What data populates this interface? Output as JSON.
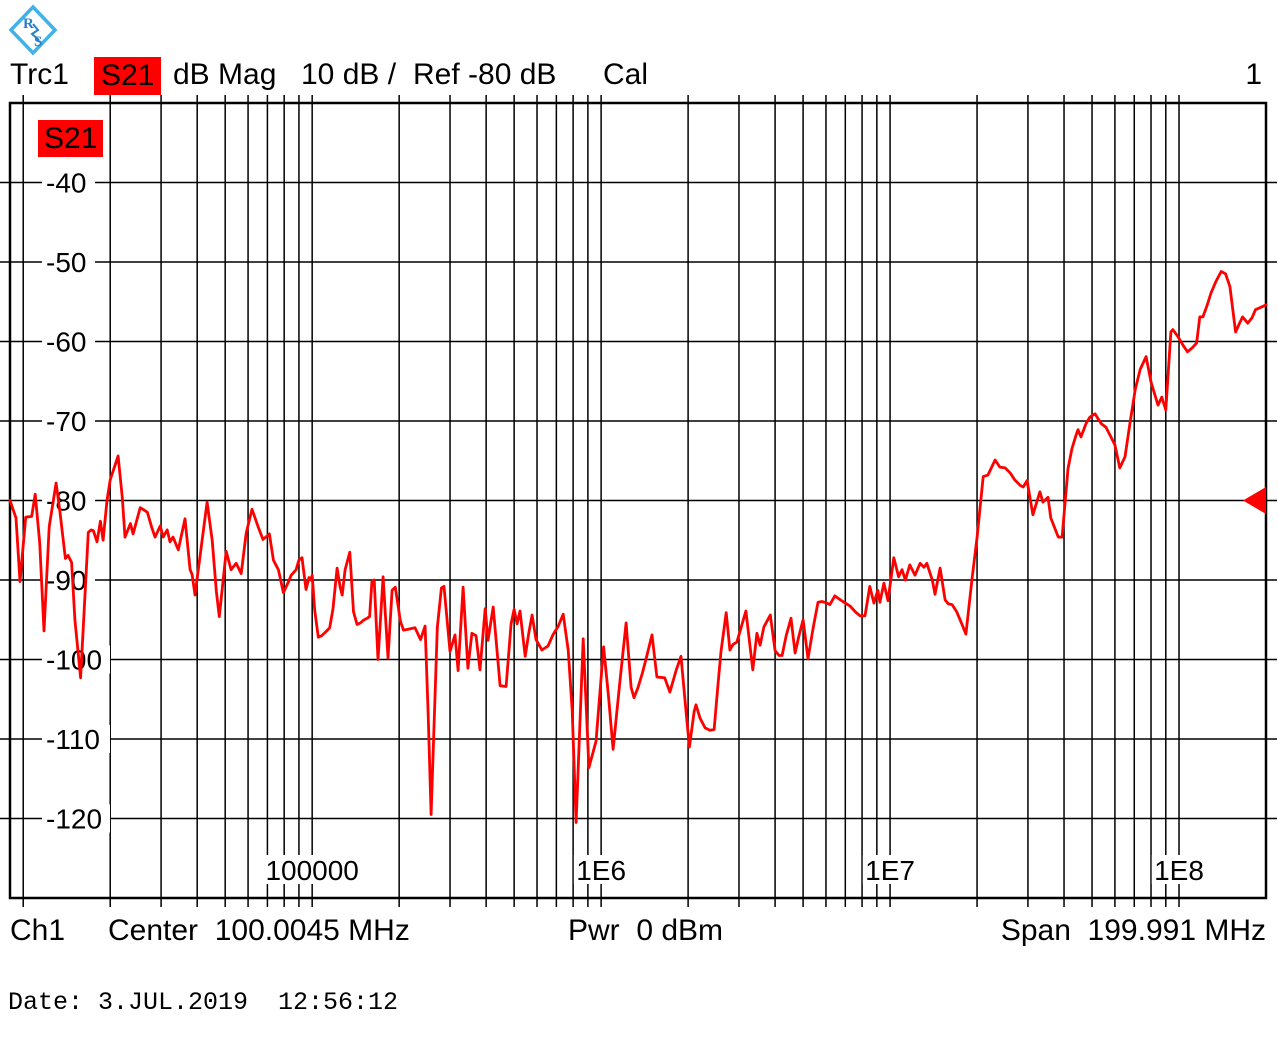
{
  "header": {
    "trace": "Trc1",
    "measurement": "S21",
    "format": "dB Mag",
    "scale": "10 dB /",
    "ref": "Ref -80 dB",
    "cal": "Cal",
    "trace_number": "1"
  },
  "plot_badge": "S21",
  "footer": {
    "channel": "Ch1",
    "center": "Center  100.0045 MHz",
    "power": "Pwr  0 dBm",
    "span": "Span  199.991 MHz"
  },
  "dateline": "Date: 3.JUL.2019  12:56:12",
  "colors": {
    "trace": "#ff0000",
    "grid": "#000000",
    "badge_bg": "#ff0000",
    "logo_blue": "#41b2e8",
    "logo_text": "#2a7fc9"
  },
  "chart_data": {
    "type": "line",
    "title": "S21 dB Mag, 10 dB / div, Ref -80 dB",
    "x_axis": {
      "scale": "log",
      "unit": "Hz",
      "min_hz": 9000,
      "max_hz": 200000000,
      "tick_labels": [
        {
          "hz": 100000,
          "label": "100000"
        },
        {
          "hz": 1000000,
          "label": "1E6"
        },
        {
          "hz": 10000000,
          "label": "1E7"
        },
        {
          "hz": 100000000,
          "label": "1E8"
        }
      ]
    },
    "y_axis": {
      "unit": "dB",
      "min_db": -130,
      "max_db": -30,
      "step_db": 10,
      "labels": [
        -40,
        -50,
        -60,
        -70,
        -80,
        -90,
        -100,
        -110,
        -120
      ]
    },
    "ref_level_db": -80,
    "grid": true,
    "points": [
      [
        9000,
        -80
      ],
      [
        9440,
        -82.2
      ],
      [
        9750,
        -90.2
      ],
      [
        10200,
        -82.1
      ],
      [
        10700,
        -82
      ],
      [
        11000,
        -79.2
      ],
      [
        11400,
        -85.3
      ],
      [
        11800,
        -96.4
      ],
      [
        12300,
        -83.3
      ],
      [
        13000,
        -77.8
      ],
      [
        13400,
        -81.4
      ],
      [
        14000,
        -87.3
      ],
      [
        14300,
        -86.9
      ],
      [
        14700,
        -87.8
      ],
      [
        15100,
        -95
      ],
      [
        15800,
        -102.3
      ],
      [
        16800,
        -84
      ],
      [
        17200,
        -83.7
      ],
      [
        17500,
        -83.8
      ],
      [
        18000,
        -85.2
      ],
      [
        18500,
        -82.6
      ],
      [
        18900,
        -85
      ],
      [
        19500,
        -80
      ],
      [
        20000,
        -77.4
      ],
      [
        21300,
        -74.4
      ],
      [
        22000,
        -79.5
      ],
      [
        22500,
        -84.6
      ],
      [
        23500,
        -82.9
      ],
      [
        24000,
        -84.2
      ],
      [
        25400,
        -80.9
      ],
      [
        26200,
        -81.2
      ],
      [
        26900,
        -81.5
      ],
      [
        27900,
        -83.5
      ],
      [
        28600,
        -84.6
      ],
      [
        29800,
        -83.2
      ],
      [
        30500,
        -84.6
      ],
      [
        31500,
        -83.7
      ],
      [
        32200,
        -85.2
      ],
      [
        33000,
        -84.6
      ],
      [
        34400,
        -86.2
      ],
      [
        36300,
        -82.3
      ],
      [
        37800,
        -88.7
      ],
      [
        38400,
        -89.3
      ],
      [
        39300,
        -91.9
      ],
      [
        41600,
        -85
      ],
      [
        43300,
        -80.2
      ],
      [
        45100,
        -85
      ],
      [
        46600,
        -91.5
      ],
      [
        47700,
        -94.6
      ],
      [
        50400,
        -86.4
      ],
      [
        52400,
        -88.7
      ],
      [
        54600,
        -87.9
      ],
      [
        56800,
        -89.2
      ],
      [
        59100,
        -84.1
      ],
      [
        61900,
        -81.1
      ],
      [
        65000,
        -83.3
      ],
      [
        67600,
        -84.9
      ],
      [
        71100,
        -84.2
      ],
      [
        73400,
        -87.5
      ],
      [
        76400,
        -88.7
      ],
      [
        79500,
        -91.6
      ],
      [
        82600,
        -90.3
      ],
      [
        84600,
        -89.4
      ],
      [
        88000,
        -88.7
      ],
      [
        90000,
        -87.5
      ],
      [
        92200,
        -87.2
      ],
      [
        95200,
        -91.2
      ],
      [
        97500,
        -89.7
      ],
      [
        99000,
        -90
      ],
      [
        100000,
        -89.4
      ],
      [
        102000,
        -93.8
      ],
      [
        105000,
        -97.2
      ],
      [
        108000,
        -97
      ],
      [
        113000,
        -96.3
      ],
      [
        115000,
        -96
      ],
      [
        118000,
        -93.7
      ],
      [
        122000,
        -88.5
      ],
      [
        125000,
        -90.9
      ],
      [
        127000,
        -91.9
      ],
      [
        130000,
        -88.7
      ],
      [
        135000,
        -86.5
      ],
      [
        139000,
        -94
      ],
      [
        143000,
        -95.6
      ],
      [
        147000,
        -95.4
      ],
      [
        150000,
        -95.1
      ],
      [
        155000,
        -94.8
      ],
      [
        158000,
        -94.6
      ],
      [
        161000,
        -90.2
      ],
      [
        164000,
        -90
      ],
      [
        169000,
        -100
      ],
      [
        176000,
        -89.6
      ],
      [
        183000,
        -99.8
      ],
      [
        189000,
        -91.3
      ],
      [
        194000,
        -90.9
      ],
      [
        202000,
        -95.2
      ],
      [
        207000,
        -96.3
      ],
      [
        215000,
        -96.2
      ],
      [
        227000,
        -96
      ],
      [
        237000,
        -97.5
      ],
      [
        246000,
        -95.8
      ],
      [
        252000,
        -107
      ],
      [
        258000,
        -119.5
      ],
      [
        271000,
        -96
      ],
      [
        280000,
        -91
      ],
      [
        286000,
        -90.8
      ],
      [
        300000,
        -99
      ],
      [
        312000,
        -96.9
      ],
      [
        320000,
        -101.4
      ],
      [
        333000,
        -90.9
      ],
      [
        346000,
        -101.1
      ],
      [
        357000,
        -96.7
      ],
      [
        369000,
        -97
      ],
      [
        381000,
        -101.3
      ],
      [
        397000,
        -93.6
      ],
      [
        406000,
        -97.6
      ],
      [
        423000,
        -93.4
      ],
      [
        447000,
        -103.3
      ],
      [
        469000,
        -103.4
      ],
      [
        488000,
        -95.5
      ],
      [
        500000,
        -93.7
      ],
      [
        512000,
        -95.5
      ],
      [
        524000,
        -93.9
      ],
      [
        546000,
        -99.6
      ],
      [
        563000,
        -96.5
      ],
      [
        577000,
        -94.4
      ],
      [
        595000,
        -97.5
      ],
      [
        624000,
        -98.8
      ],
      [
        655000,
        -98.3
      ],
      [
        681000,
        -96.9
      ],
      [
        711000,
        -95.8
      ],
      [
        739000,
        -94.3
      ],
      [
        769000,
        -98.8
      ],
      [
        794000,
        -106.4
      ],
      [
        819000,
        -120.5
      ],
      [
        867000,
        -97.4
      ],
      [
        907000,
        -113.6
      ],
      [
        960000,
        -110.3
      ],
      [
        1020000,
        -98.4
      ],
      [
        1060000,
        -104.5
      ],
      [
        1100000,
        -111.3
      ],
      [
        1160000,
        -103
      ],
      [
        1220000,
        -95.4
      ],
      [
        1270000,
        -103.5
      ],
      [
        1300000,
        -104.8
      ],
      [
        1340000,
        -103.6
      ],
      [
        1390000,
        -101.7
      ],
      [
        1440000,
        -99.5
      ],
      [
        1500000,
        -96.9
      ],
      [
        1560000,
        -102.2
      ],
      [
        1660000,
        -102.3
      ],
      [
        1730000,
        -104.1
      ],
      [
        1820000,
        -101.3
      ],
      [
        1890000,
        -99.6
      ],
      [
        1950000,
        -105
      ],
      [
        2020000,
        -111
      ],
      [
        2100000,
        -106.5
      ],
      [
        2130000,
        -105.7
      ],
      [
        2200000,
        -107.4
      ],
      [
        2290000,
        -108.6
      ],
      [
        2380000,
        -108.9
      ],
      [
        2460000,
        -108.8
      ],
      [
        2540000,
        -103
      ],
      [
        2600000,
        -99
      ],
      [
        2710000,
        -94.1
      ],
      [
        2790000,
        -98.8
      ],
      [
        2860000,
        -98.1
      ],
      [
        2950000,
        -97.8
      ],
      [
        3170000,
        -93.9
      ],
      [
        3350000,
        -101.3
      ],
      [
        3460000,
        -96.7
      ],
      [
        3550000,
        -98.2
      ],
      [
        3660000,
        -95.9
      ],
      [
        3850000,
        -94.4
      ],
      [
        4000000,
        -98.9
      ],
      [
        4130000,
        -99.5
      ],
      [
        4230000,
        -99.5
      ],
      [
        4370000,
        -97
      ],
      [
        4540000,
        -94.8
      ],
      [
        4690000,
        -99.2
      ],
      [
        4840000,
        -97
      ],
      [
        5000000,
        -95
      ],
      [
        5200000,
        -99.9
      ],
      [
        5420000,
        -96
      ],
      [
        5630000,
        -92.8
      ],
      [
        5810000,
        -92.7
      ],
      [
        6050000,
        -92.9
      ],
      [
        6190000,
        -93.1
      ],
      [
        6440000,
        -92
      ],
      [
        6730000,
        -92.5
      ],
      [
        7000000,
        -92.9
      ],
      [
        7280000,
        -93.3
      ],
      [
        7580000,
        -94
      ],
      [
        7870000,
        -94.5
      ],
      [
        8190000,
        -94.5
      ],
      [
        8510000,
        -90.8
      ],
      [
        8790000,
        -92.9
      ],
      [
        9070000,
        -91.3
      ],
      [
        9220000,
        -92.8
      ],
      [
        9520000,
        -90.4
      ],
      [
        9840000,
        -92.6
      ],
      [
        10300000,
        -87.2
      ],
      [
        10700000,
        -89.6
      ],
      [
        11000000,
        -88.7
      ],
      [
        11300000,
        -90
      ],
      [
        11700000,
        -88.1
      ],
      [
        12200000,
        -89.4
      ],
      [
        12700000,
        -87.9
      ],
      [
        13100000,
        -88.4
      ],
      [
        13400000,
        -87.9
      ],
      [
        14000000,
        -90
      ],
      [
        14300000,
        -91.8
      ],
      [
        14900000,
        -88.5
      ],
      [
        15500000,
        -92.5
      ],
      [
        15900000,
        -93
      ],
      [
        16400000,
        -93.1
      ],
      [
        17000000,
        -94
      ],
      [
        17800000,
        -95.7
      ],
      [
        18300000,
        -96.8
      ],
      [
        19200000,
        -90
      ],
      [
        20000000,
        -84.6
      ],
      [
        21000000,
        -77
      ],
      [
        21800000,
        -76.8
      ],
      [
        23100000,
        -74.9
      ],
      [
        24000000,
        -75.8
      ],
      [
        25000000,
        -75.9
      ],
      [
        26000000,
        -76.5
      ],
      [
        27000000,
        -77.4
      ],
      [
        28200000,
        -78.1
      ],
      [
        28900000,
        -78.3
      ],
      [
        29800000,
        -77.5
      ],
      [
        31200000,
        -81.8
      ],
      [
        33000000,
        -78.9
      ],
      [
        33800000,
        -80.2
      ],
      [
        35200000,
        -79.6
      ],
      [
        36000000,
        -82.2
      ],
      [
        38200000,
        -84.6
      ],
      [
        39400000,
        -84.6
      ],
      [
        41300000,
        -76
      ],
      [
        42600000,
        -73.5
      ],
      [
        44000000,
        -71.8
      ],
      [
        44700000,
        -71.1
      ],
      [
        45800000,
        -72
      ],
      [
        47700000,
        -70.3
      ],
      [
        49200000,
        -69.5
      ],
      [
        51200000,
        -69.1
      ],
      [
        53700000,
        -70.3
      ],
      [
        55900000,
        -70.8
      ],
      [
        58100000,
        -72
      ],
      [
        60000000,
        -73
      ],
      [
        62400000,
        -75.9
      ],
      [
        65000000,
        -74.5
      ],
      [
        67800000,
        -70
      ],
      [
        70600000,
        -66
      ],
      [
        73400000,
        -63.5
      ],
      [
        76900000,
        -61.9
      ],
      [
        80000000,
        -65.1
      ],
      [
        84600000,
        -68
      ],
      [
        87200000,
        -67
      ],
      [
        90000000,
        -68.6
      ],
      [
        93700000,
        -58.8
      ],
      [
        95200000,
        -58.5
      ],
      [
        99200000,
        -59.4
      ],
      [
        103000000,
        -60.4
      ],
      [
        107000000,
        -61.3
      ],
      [
        111000000,
        -60.8
      ],
      [
        115000000,
        -60.2
      ],
      [
        118000000,
        -56.9
      ],
      [
        121000000,
        -56.9
      ],
      [
        125000000,
        -55.5
      ],
      [
        129000000,
        -53.9
      ],
      [
        134000000,
        -52.5
      ],
      [
        140000000,
        -51.2
      ],
      [
        145000000,
        -51.5
      ],
      [
        150000000,
        -53.1
      ],
      [
        157000000,
        -58.8
      ],
      [
        163000000,
        -57.5
      ],
      [
        166000000,
        -56.9
      ],
      [
        173000000,
        -57.7
      ],
      [
        179000000,
        -57
      ],
      [
        184000000,
        -56
      ],
      [
        192000000,
        -55.7
      ],
      [
        200000000,
        -55.4
      ]
    ]
  }
}
